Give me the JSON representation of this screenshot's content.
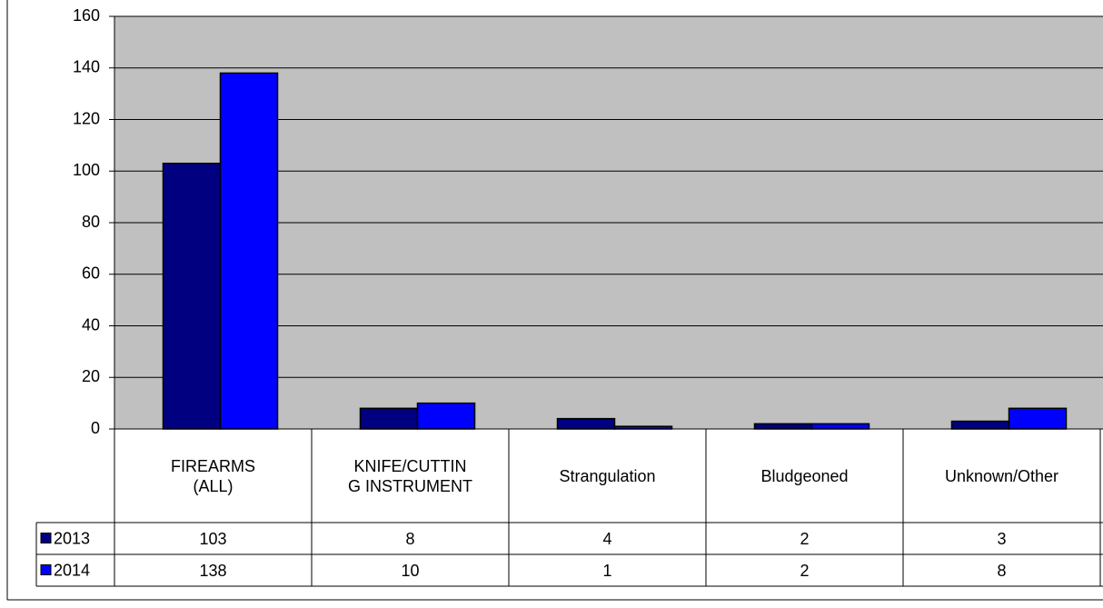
{
  "chart_data": {
    "type": "bar",
    "categories": [
      "FIREARMS (ALL)",
      "KNIFE/CUTTING INSTRUMENT",
      "Strangulation",
      "Bludgeoned",
      "Unknown/Other"
    ],
    "series": [
      {
        "name": "2013",
        "color": "#000080",
        "values": [
          103,
          8,
          4,
          2,
          3
        ]
      },
      {
        "name": "2014",
        "color": "#0000ff",
        "values": [
          138,
          10,
          1,
          2,
          8
        ]
      }
    ],
    "ylim": [
      0,
      160
    ],
    "yticks": [
      0,
      20,
      40,
      60,
      80,
      100,
      120,
      140,
      160
    ],
    "grid": true,
    "plot_background": "#c0c0c0"
  }
}
